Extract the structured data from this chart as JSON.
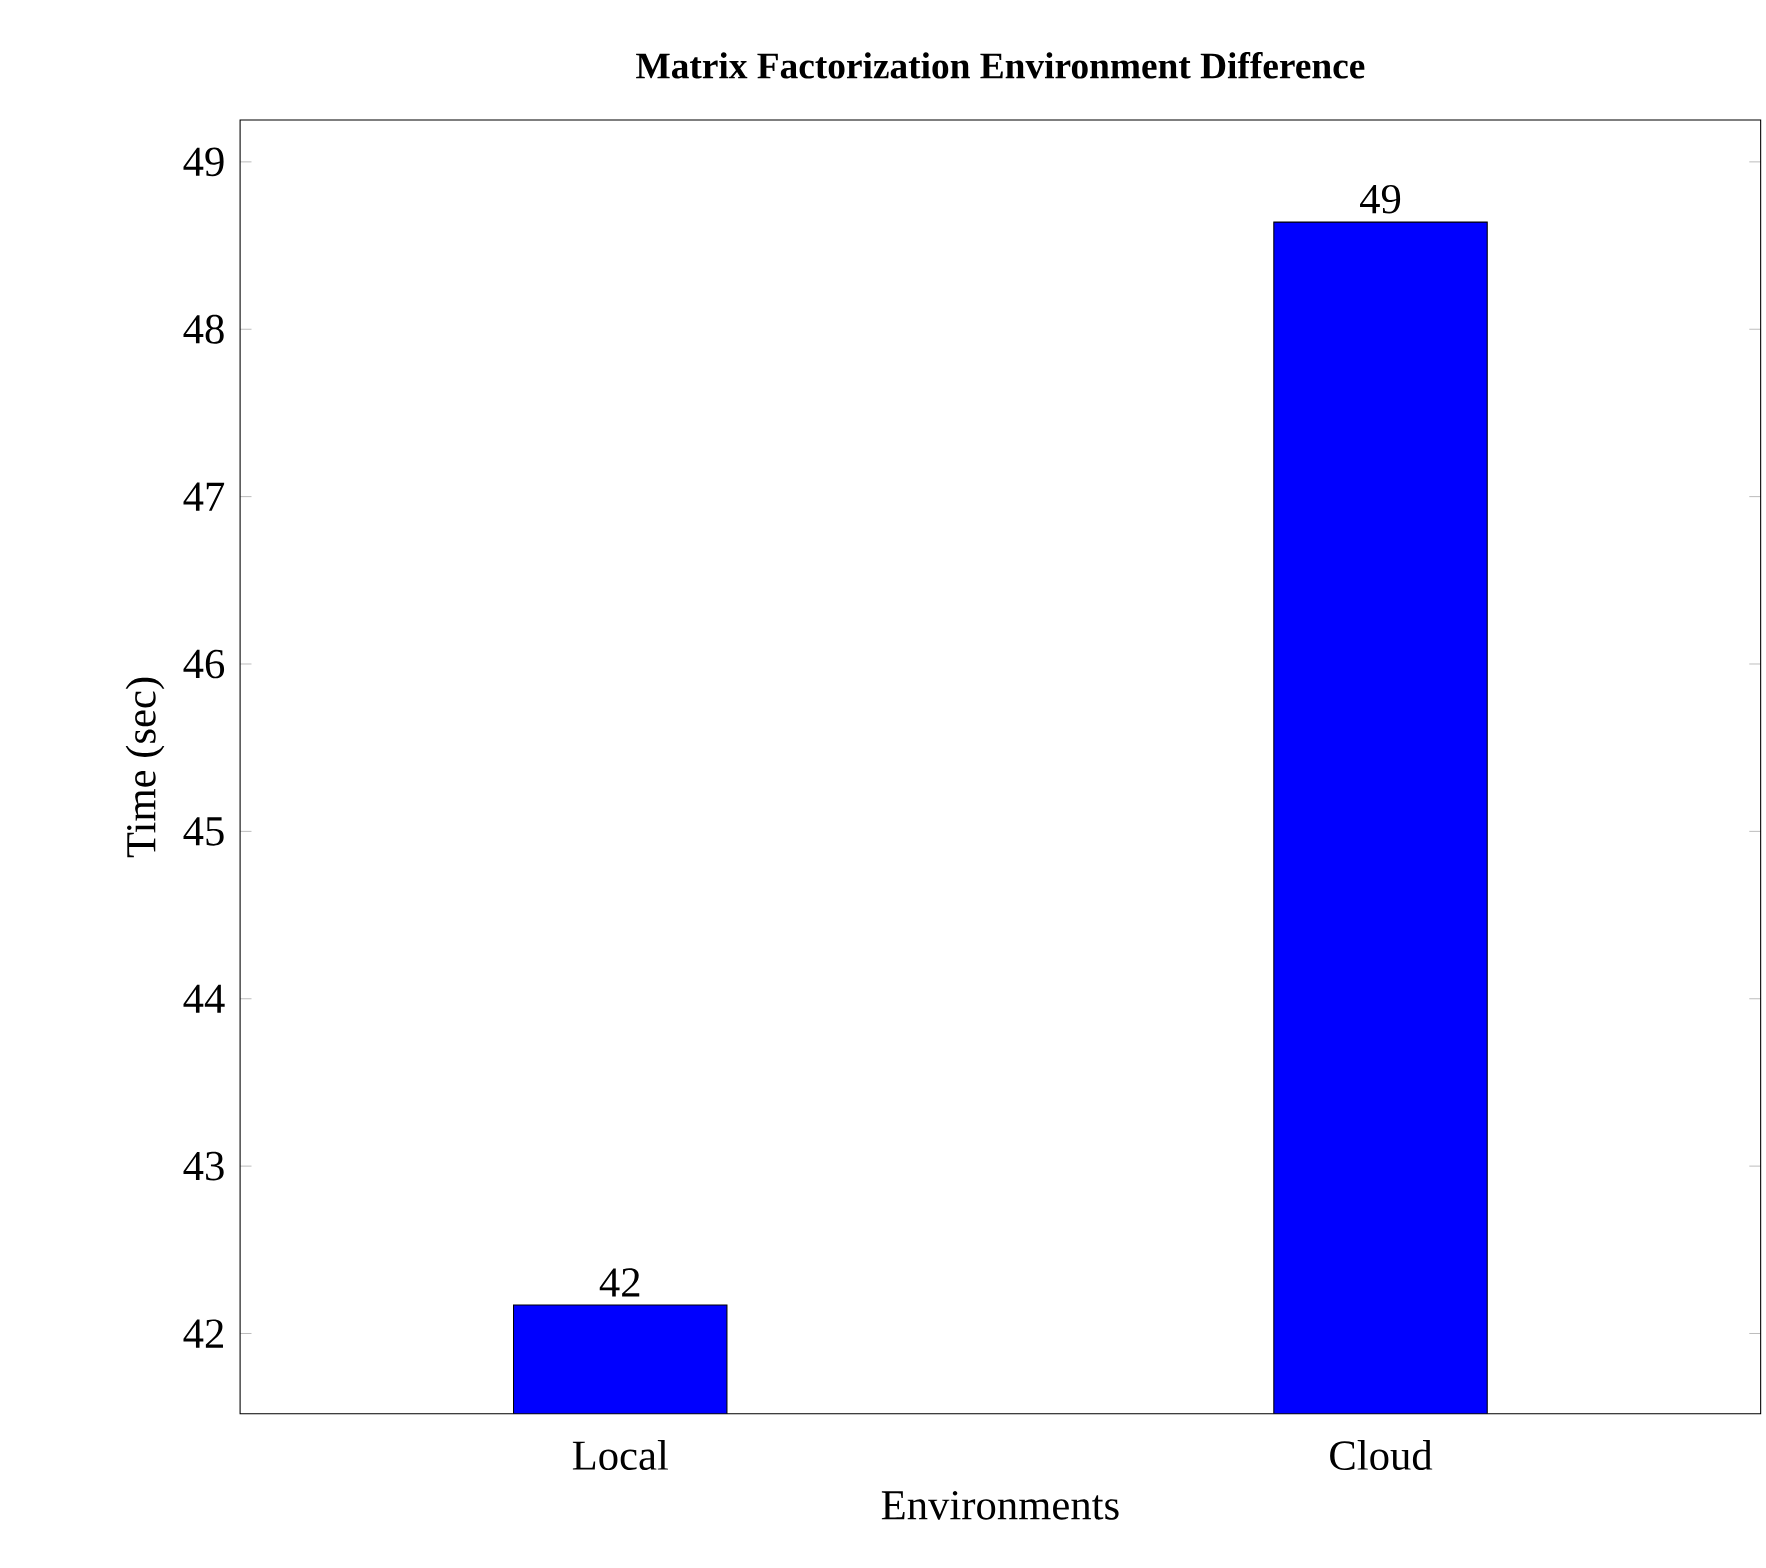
{
  "chart_data": {
    "type": "bar",
    "title": "**Matrix Factorization Environment Difference**",
    "xlabel": "Environments",
    "ylabel": "Time (sec)",
    "categories": [
      "Local",
      "Cloud"
    ],
    "values": [
      42.17,
      48.64
    ],
    "value_labels": [
      "42",
      "49"
    ],
    "color": "#0000ff",
    "ylim": [
      41.52,
      49.25
    ],
    "yticks": [
      42,
      43,
      44,
      45,
      46,
      47,
      48,
      49
    ],
    "grid": false
  }
}
